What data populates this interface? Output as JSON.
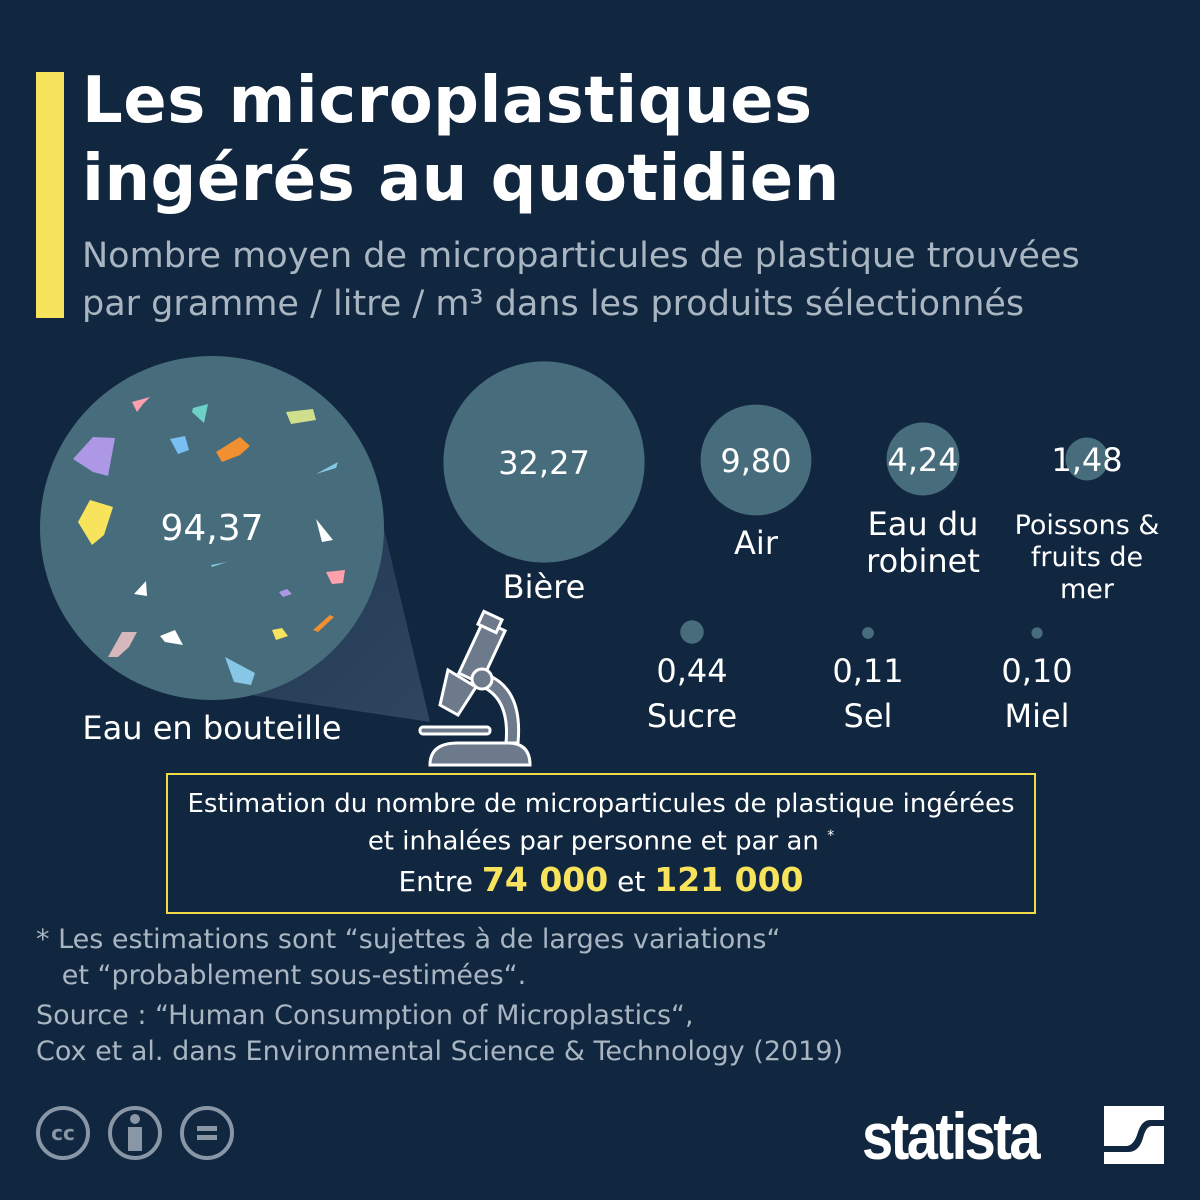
{
  "header": {
    "title_line1": "Les microplastiques",
    "title_line2": "ingérés au quotidien",
    "subtitle_line1": "Nombre moyen de microparticules de plastique trouvées",
    "subtitle_line2": "par gramme / litre / m³ dans les produits sélectionnés"
  },
  "colors": {
    "background": "#11263f",
    "bubble": "#476d7c",
    "accent": "#f8e45c"
  },
  "chart_data": {
    "type": "bubble",
    "title": "Les microplastiques ingérés au quotidien",
    "categories": [
      "Eau en bouteille",
      "Bière",
      "Air",
      "Eau du robinet",
      "Poissons & fruits de mer",
      "Sucre",
      "Sel",
      "Miel"
    ],
    "values": [
      94.37,
      32.27,
      9.8,
      4.24,
      1.48,
      0.44,
      0.11,
      0.1
    ],
    "value_labels": [
      "94,37",
      "32,27",
      "9,80",
      "4,24",
      "1,48",
      "0,44",
      "0,11",
      "0,10"
    ]
  },
  "estimate": {
    "line1": "Estimation du nombre de microparticules de plastique ingérées",
    "line2": "et inhalées par personne et par an",
    "asterisk": "*",
    "prefix": "Entre",
    "low": "74 000",
    "joiner": "et",
    "high": "121 000"
  },
  "footnote": {
    "line1": "* Les estimations sont “sujettes à de larges variations“",
    "line2": "   et “probablement sous-estimées“."
  },
  "source": {
    "line1": "Source : “Human Consumption of Microplastics“,",
    "line2": "Cox et al. dans Environmental Science & Technology (2019)"
  },
  "footer": {
    "license_icons": [
      "cc-icon",
      "attribution-icon",
      "no-derivatives-icon"
    ],
    "cc_text": "cc",
    "logo": "statista"
  }
}
